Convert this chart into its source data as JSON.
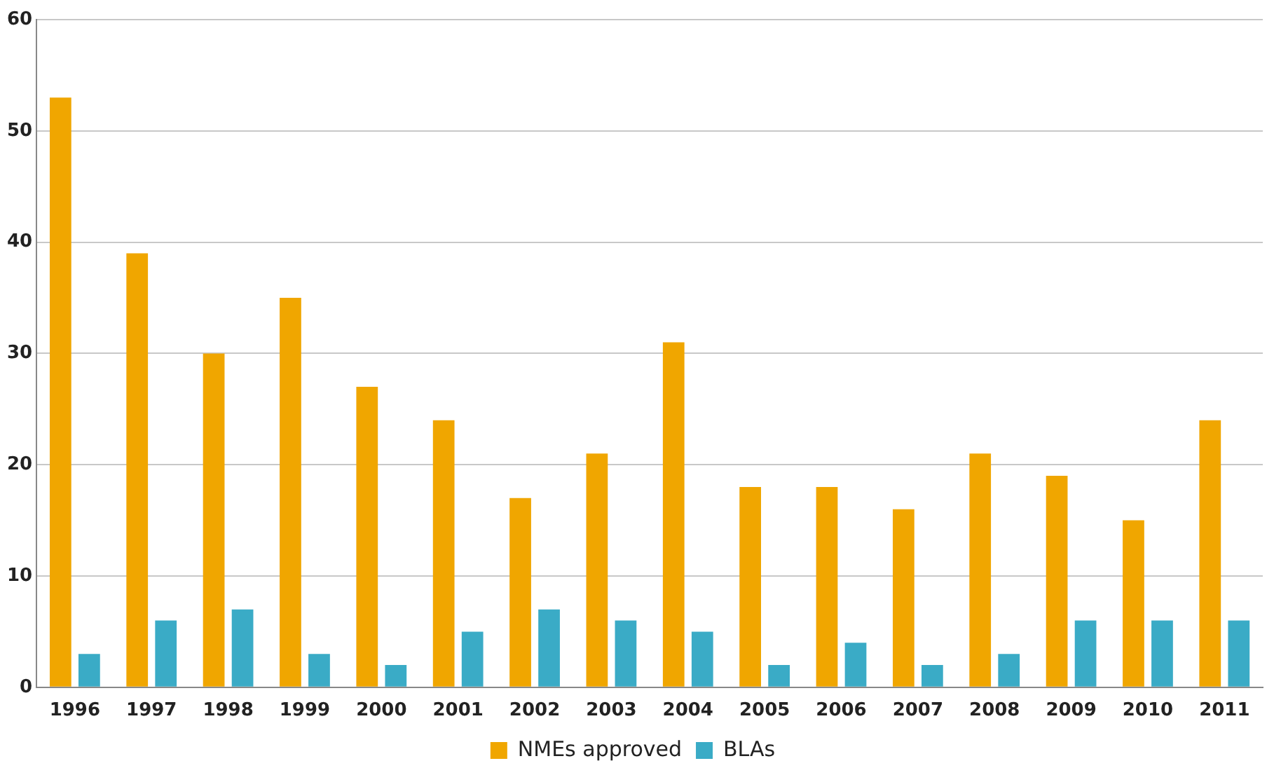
{
  "chart_data": {
    "type": "bar",
    "categories": [
      "1996",
      "1997",
      "1998",
      "1999",
      "2000",
      "2001",
      "2002",
      "2003",
      "2004",
      "2005",
      "2006",
      "2007",
      "2008",
      "2009",
      "2010",
      "2011"
    ],
    "series": [
      {
        "name": "NMEs approved",
        "color": "#f0a600",
        "values": [
          53,
          39,
          30,
          35,
          27,
          24,
          17,
          21,
          31,
          18,
          18,
          16,
          21,
          19,
          15,
          24
        ]
      },
      {
        "name": "BLAs",
        "color": "#3aabc6",
        "values": [
          3,
          6,
          7,
          3,
          2,
          5,
          7,
          6,
          5,
          2,
          4,
          2,
          3,
          6,
          6,
          6
        ]
      }
    ],
    "ylim": [
      0,
      60
    ],
    "yticks": [
      0,
      10,
      20,
      30,
      40,
      50,
      60
    ],
    "grid": "y",
    "legend": "bottom"
  }
}
